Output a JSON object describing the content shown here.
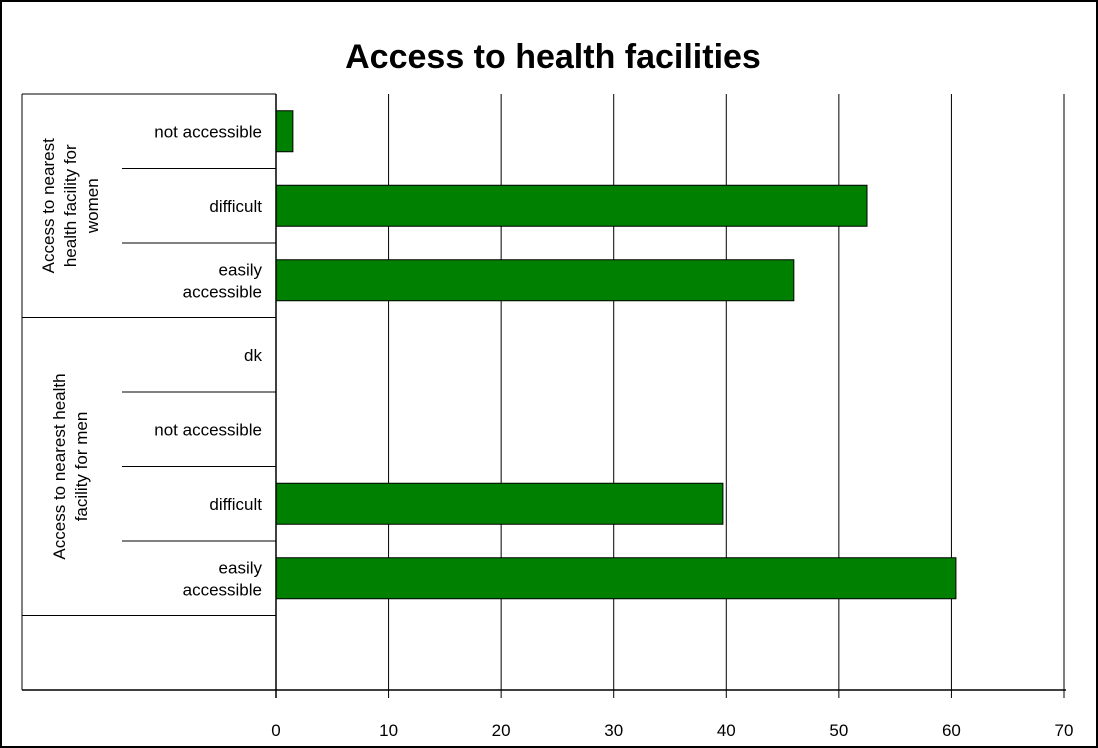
{
  "chart_data": {
    "type": "bar",
    "orientation": "horizontal",
    "title": "Access to health facilities",
    "xlabel": "",
    "ylabel": "",
    "xlim": [
      0,
      70
    ],
    "x_ticks": [
      0,
      10,
      20,
      30,
      40,
      50,
      60,
      70
    ],
    "grid": true,
    "bar_color": "#008000",
    "groups": [
      {
        "label_lines": [
          "Access to nearest",
          "health facility for",
          "women"
        ],
        "categories": [
          {
            "label_lines": [
              "not accessible"
            ],
            "value": 1.5
          },
          {
            "label_lines": [
              "difficult"
            ],
            "value": 52.5
          },
          {
            "label_lines": [
              "easily",
              "accessible"
            ],
            "value": 46
          }
        ]
      },
      {
        "label_lines": [
          "Access to nearest health",
          "facility for men"
        ],
        "categories": [
          {
            "label_lines": [
              "dk"
            ],
            "value": null
          },
          {
            "label_lines": [
              "not accessible"
            ],
            "value": null
          },
          {
            "label_lines": [
              "difficult"
            ],
            "value": 39.7
          },
          {
            "label_lines": [
              "easily",
              "accessible"
            ],
            "value": 60.4
          }
        ]
      }
    ]
  }
}
